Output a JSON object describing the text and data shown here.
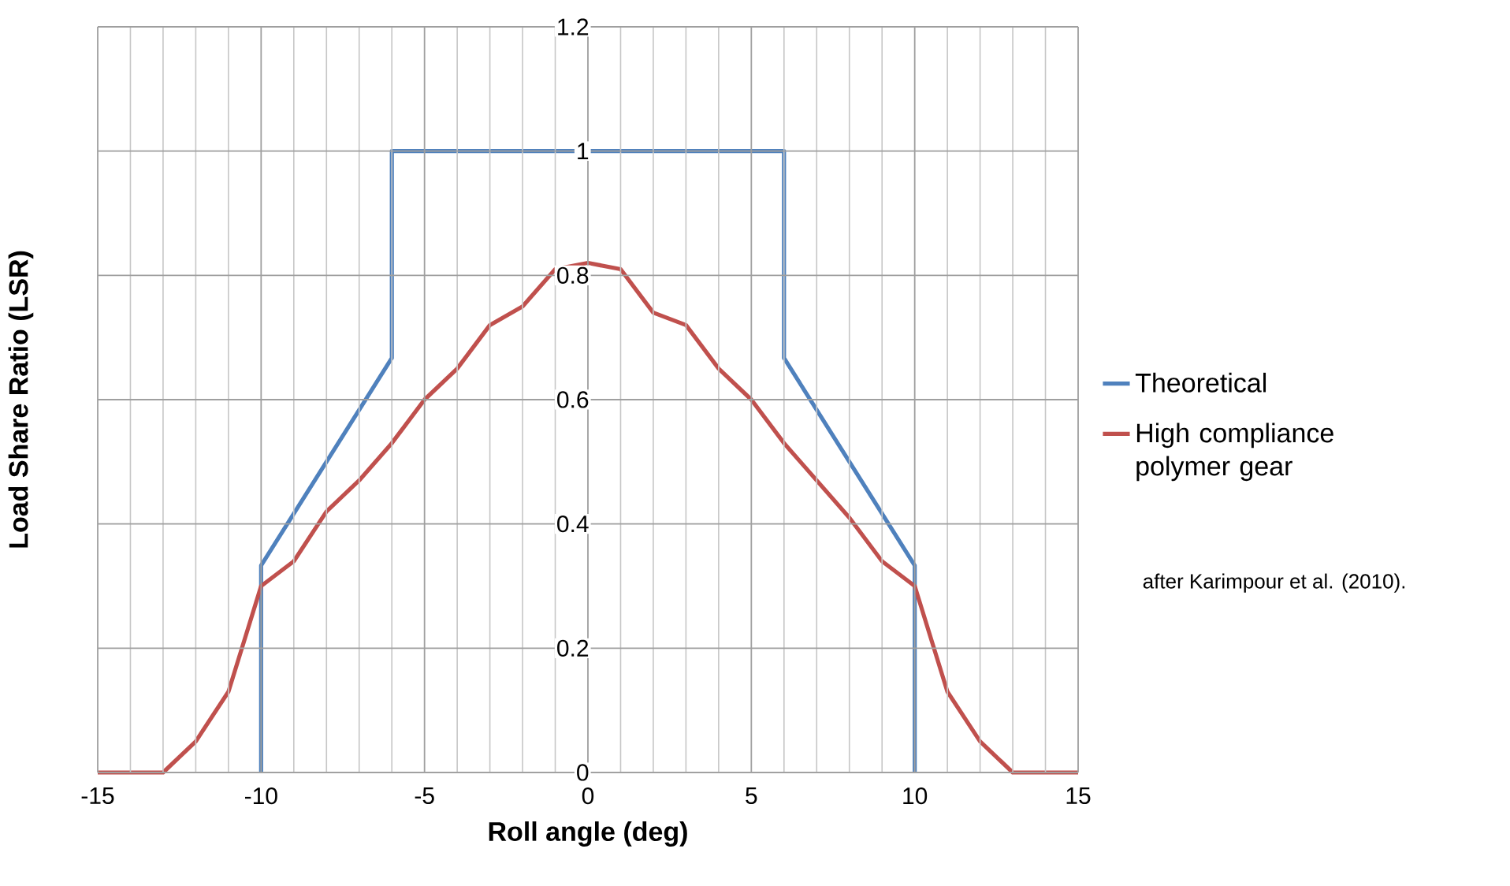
{
  "chart_data": {
    "type": "line",
    "xlabel": "Roll angle (deg)",
    "ylabel": "Load Share Ratio (LSR)",
    "xlim": [
      -15,
      15
    ],
    "xticks": [
      -15,
      -10,
      -5,
      0,
      5,
      10,
      15
    ],
    "ylim": [
      0,
      1.2
    ],
    "yticks": [
      0,
      0.2,
      0.4,
      0.6,
      0.8,
      1,
      1.2
    ],
    "grid": true,
    "legend": "right",
    "marker": "none",
    "line_style": "solid",
    "annotations": [
      "after Karimpour et al. (2010)."
    ],
    "series": [
      {
        "name": "Theoretical",
        "color": "#4f81bd",
        "x": [
          -10,
          -10,
          -6,
          -6,
          6,
          6,
          10,
          10
        ],
        "values": [
          0,
          0.333,
          0.667,
          1,
          1,
          0.667,
          0.333,
          0
        ]
      },
      {
        "name": "High compliance polymer gear",
        "color": "#c0504d",
        "x": [
          -15,
          -13,
          -12,
          -11,
          -10,
          -9,
          -8,
          -7,
          -6,
          -5,
          -4,
          -3,
          -2,
          -1,
          0,
          1,
          2,
          3,
          4,
          5,
          6,
          7,
          8,
          9,
          10,
          11,
          12,
          13,
          15
        ],
        "values": [
          0,
          0,
          0.05,
          0.13,
          0.3,
          0.34,
          0.42,
          0.47,
          0.53,
          0.6,
          0.65,
          0.72,
          0.75,
          0.81,
          0.82,
          0.81,
          0.74,
          0.72,
          0.65,
          0.6,
          0.53,
          0.47,
          0.41,
          0.34,
          0.3,
          0.13,
          0.05,
          0,
          0
        ]
      }
    ]
  }
}
